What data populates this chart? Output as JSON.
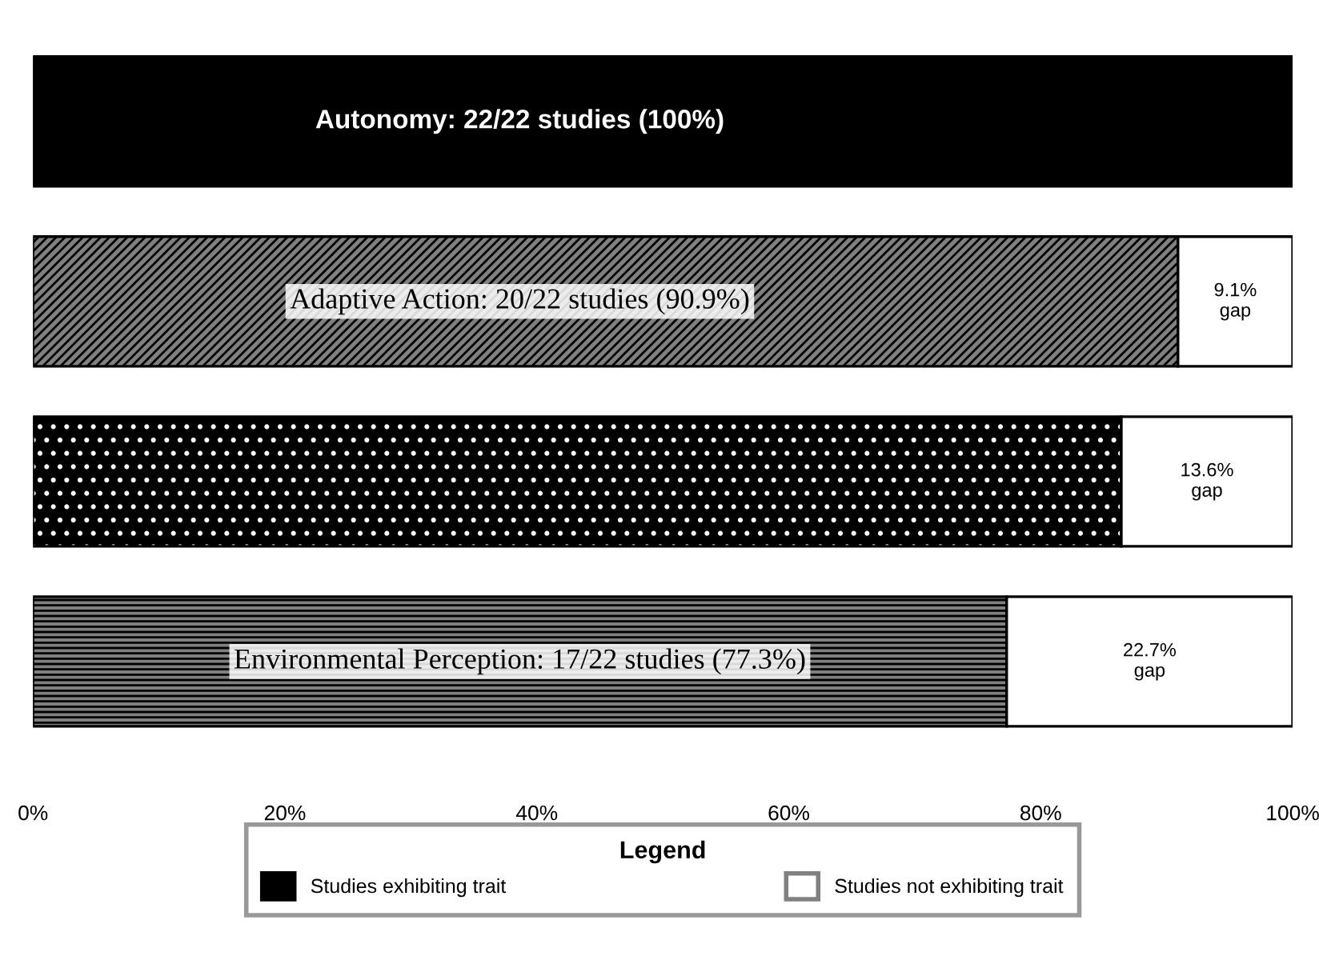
{
  "chart_data": {
    "type": "bar",
    "orientation": "horizontal",
    "stacked": true,
    "categories": [
      "Autonomy: 22/22 studies (100%)",
      "Adaptive Action: 20/22 studies (90.9%)",
      null,
      "Environmental Perception: 17/22 studies (77.3%)"
    ],
    "series": [
      {
        "name": "Studies exhibiting trait",
        "color": "#000000",
        "colors": [
          "#000000",
          "#808080",
          "#000000",
          "#808080"
        ],
        "values": [
          100,
          90.9,
          86.4,
          77.3
        ]
      },
      {
        "name": "Studies not exhibiting trait",
        "color": "#ffffff",
        "values": [
          0,
          9.1,
          13.6,
          22.7
        ],
        "value_labels": [
          null,
          "9.1%\ngap",
          "13.6%\ngap",
          "22.7%\ngap"
        ]
      }
    ],
    "xlim": [
      0,
      100
    ],
    "xticks": [
      {
        "value": 0,
        "label": "0%"
      },
      {
        "value": 20,
        "label": "20%"
      },
      {
        "value": 40,
        "label": "40%"
      },
      {
        "value": 60,
        "label": "60%"
      },
      {
        "value": 80,
        "label": "80%"
      },
      {
        "value": 100,
        "label": "100%"
      }
    ],
    "tick_labels": "x",
    "grid": false,
    "legend": "bottom",
    "legend_title": "Legend"
  }
}
